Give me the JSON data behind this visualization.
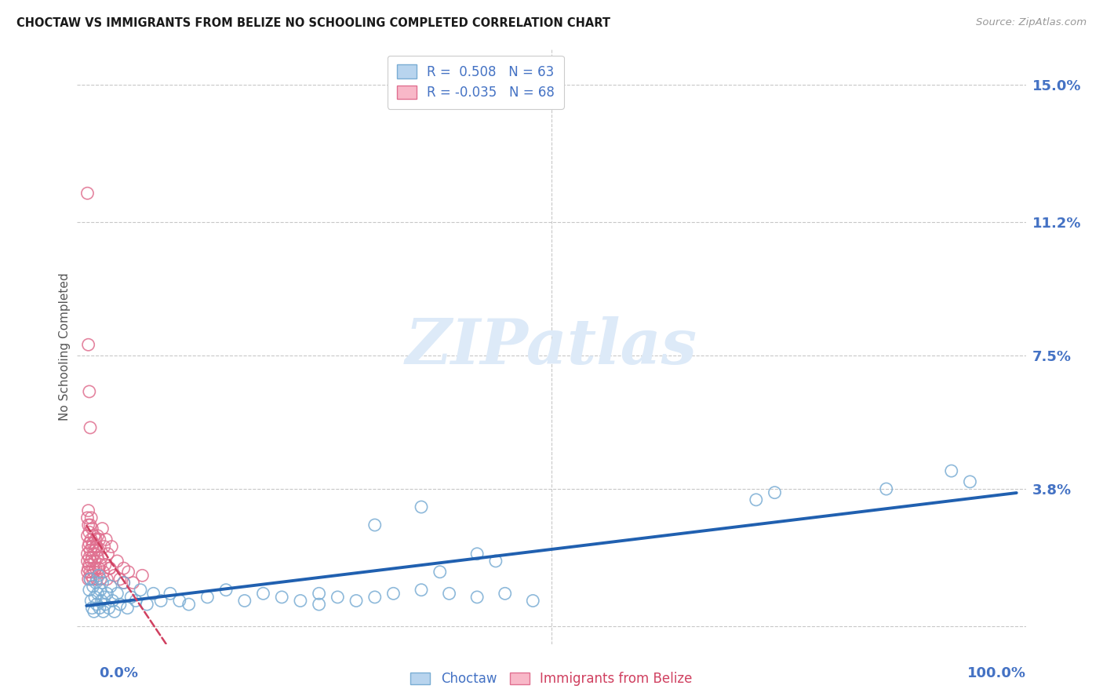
{
  "title": "CHOCTAW VS IMMIGRANTS FROM BELIZE NO SCHOOLING COMPLETED CORRELATION CHART",
  "source": "Source: ZipAtlas.com",
  "ylabel": "No Schooling Completed",
  "ytick_positions": [
    0.0,
    0.038,
    0.075,
    0.112,
    0.15
  ],
  "ytick_labels": [
    "",
    "3.8%",
    "7.5%",
    "11.2%",
    "15.0%"
  ],
  "xlim": [
    -0.01,
    1.01
  ],
  "ylim": [
    -0.005,
    0.16
  ],
  "choctaw_R": 0.508,
  "choctaw_N": 63,
  "belize_R": -0.035,
  "belize_N": 68,
  "choctaw_dot_color": "none",
  "choctaw_edge_color": "#7aadd4",
  "choctaw_line_color": "#2060b0",
  "belize_dot_color": "none",
  "belize_edge_color": "#e07090",
  "belize_line_color": "#d04060",
  "watermark_color": "#ddeaf8",
  "background_color": "#ffffff",
  "grid_color": "#c8c8c8",
  "axis_label_color": "#4472c4",
  "title_color": "#1a1a1a",
  "legend_choctaw_face": "#b8d4ee",
  "legend_belize_face": "#f8b8c8",
  "choctaw_x": [
    0.003,
    0.004,
    0.005,
    0.006,
    0.007,
    0.008,
    0.009,
    0.01,
    0.011,
    0.012,
    0.013,
    0.014,
    0.015,
    0.016,
    0.017,
    0.018,
    0.019,
    0.02,
    0.022,
    0.024,
    0.026,
    0.028,
    0.03,
    0.033,
    0.036,
    0.04,
    0.044,
    0.048,
    0.053,
    0.058,
    0.065,
    0.072,
    0.08,
    0.09,
    0.1,
    0.11,
    0.13,
    0.15,
    0.17,
    0.19,
    0.21,
    0.23,
    0.25,
    0.27,
    0.29,
    0.31,
    0.33,
    0.36,
    0.39,
    0.42,
    0.45,
    0.48,
    0.31,
    0.36,
    0.42,
    0.72,
    0.74,
    0.86,
    0.93,
    0.95,
    0.44,
    0.38,
    0.25
  ],
  "choctaw_y": [
    0.01,
    0.013,
    0.007,
    0.005,
    0.011,
    0.004,
    0.008,
    0.012,
    0.006,
    0.009,
    0.014,
    0.005,
    0.01,
    0.007,
    0.012,
    0.004,
    0.008,
    0.006,
    0.009,
    0.005,
    0.011,
    0.007,
    0.004,
    0.009,
    0.006,
    0.012,
    0.005,
    0.008,
    0.007,
    0.01,
    0.006,
    0.009,
    0.007,
    0.009,
    0.007,
    0.006,
    0.008,
    0.01,
    0.007,
    0.009,
    0.008,
    0.007,
    0.009,
    0.008,
    0.007,
    0.008,
    0.009,
    0.01,
    0.009,
    0.008,
    0.009,
    0.007,
    0.028,
    0.033,
    0.02,
    0.035,
    0.037,
    0.038,
    0.043,
    0.04,
    0.018,
    0.015,
    0.006
  ],
  "belize_x": [
    0.001,
    0.001,
    0.001,
    0.001,
    0.001,
    0.002,
    0.002,
    0.002,
    0.002,
    0.002,
    0.003,
    0.003,
    0.003,
    0.003,
    0.004,
    0.004,
    0.004,
    0.004,
    0.005,
    0.005,
    0.005,
    0.005,
    0.006,
    0.006,
    0.006,
    0.007,
    0.007,
    0.007,
    0.008,
    0.008,
    0.008,
    0.009,
    0.009,
    0.01,
    0.01,
    0.011,
    0.011,
    0.012,
    0.012,
    0.013,
    0.013,
    0.014,
    0.015,
    0.016,
    0.017,
    0.018,
    0.019,
    0.02,
    0.021,
    0.022,
    0.023,
    0.025,
    0.027,
    0.03,
    0.033,
    0.036,
    0.04,
    0.045,
    0.05,
    0.06,
    0.001,
    0.002,
    0.003,
    0.004,
    0.01,
    0.015,
    0.025,
    0.04
  ],
  "belize_y": [
    0.025,
    0.02,
    0.03,
    0.018,
    0.015,
    0.022,
    0.028,
    0.016,
    0.013,
    0.032,
    0.019,
    0.026,
    0.023,
    0.017,
    0.021,
    0.015,
    0.028,
    0.013,
    0.024,
    0.018,
    0.03,
    0.014,
    0.022,
    0.019,
    0.027,
    0.016,
    0.023,
    0.013,
    0.02,
    0.025,
    0.015,
    0.021,
    0.018,
    0.024,
    0.016,
    0.022,
    0.013,
    0.019,
    0.025,
    0.016,
    0.021,
    0.024,
    0.013,
    0.019,
    0.027,
    0.015,
    0.022,
    0.017,
    0.024,
    0.013,
    0.02,
    0.016,
    0.022,
    0.014,
    0.018,
    0.013,
    0.016,
    0.015,
    0.012,
    0.014,
    0.12,
    0.078,
    0.065,
    0.055,
    0.022,
    0.017,
    0.016,
    0.012
  ]
}
